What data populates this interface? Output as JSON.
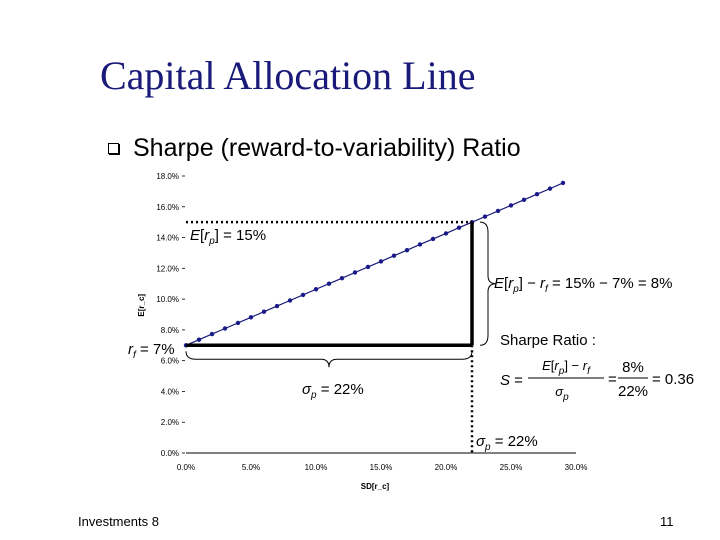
{
  "slide": {
    "title": "Capital Allocation Line",
    "bullet": "Sharpe (reward-to-variability) Ratio",
    "footer_left": "Investments 8",
    "page_number": "11"
  },
  "colors": {
    "title": "#1a1a7a",
    "line": "#1a1a7a",
    "marker": "#1a1a8a"
  },
  "chart_data": {
    "type": "line",
    "xlabel": "SD[r_c]",
    "ylabel": "E[r_c]",
    "x_ticks": [
      "0.0%",
      "5.0%",
      "10.0%",
      "15.0%",
      "20.0%",
      "25.0%",
      "30.0%"
    ],
    "y_ticks": [
      "0.0%",
      "2.0%",
      "4.0%",
      "6.0%",
      "8.0%",
      "10.0%",
      "12.0%",
      "14.0%",
      "16.0%",
      "18.0%"
    ],
    "xlim": [
      0,
      30
    ],
    "ylim": [
      0,
      18
    ],
    "x_unit": "percent",
    "y_unit": "percent",
    "grid": false,
    "legend": "none",
    "series": [
      {
        "values_x": [
          0,
          1,
          2,
          3,
          4,
          5,
          6,
          7,
          8,
          9,
          10,
          11,
          12,
          13,
          14,
          15,
          16,
          17,
          18,
          19,
          20,
          21,
          22,
          23,
          24,
          25,
          26,
          27,
          28,
          29
        ],
        "values_y": [
          7.0,
          7.36,
          7.73,
          8.09,
          8.45,
          8.82,
          9.18,
          9.55,
          9.91,
          10.27,
          10.64,
          11.0,
          11.36,
          11.73,
          12.09,
          12.45,
          12.82,
          13.18,
          13.55,
          13.91,
          14.27,
          14.64,
          15.0,
          15.36,
          15.73,
          16.09,
          16.45,
          16.82,
          17.18,
          17.55
        ]
      }
    ],
    "annotations": {
      "expected_return": "E[r_p] = 15%",
      "risk_premium": "E[r_p] − r_f = 15% − 7% = 8%",
      "risk_free": "r_f = 7%",
      "sigma_mid": "σ_p = 22%",
      "sigma_axis": "σ_p = 22%",
      "sharpe_heading": "Sharpe Ratio :",
      "sharpe_lhs": "S =",
      "sharpe_num": "E[r_p] − r_f",
      "sharpe_den": "σ_p",
      "sharpe_num_val": "8%",
      "sharpe_den_val": "22%",
      "sharpe_result": "= 0.36",
      "portfolio_x": 22,
      "portfolio_y": 15,
      "risk_free_rate": 7
    }
  }
}
